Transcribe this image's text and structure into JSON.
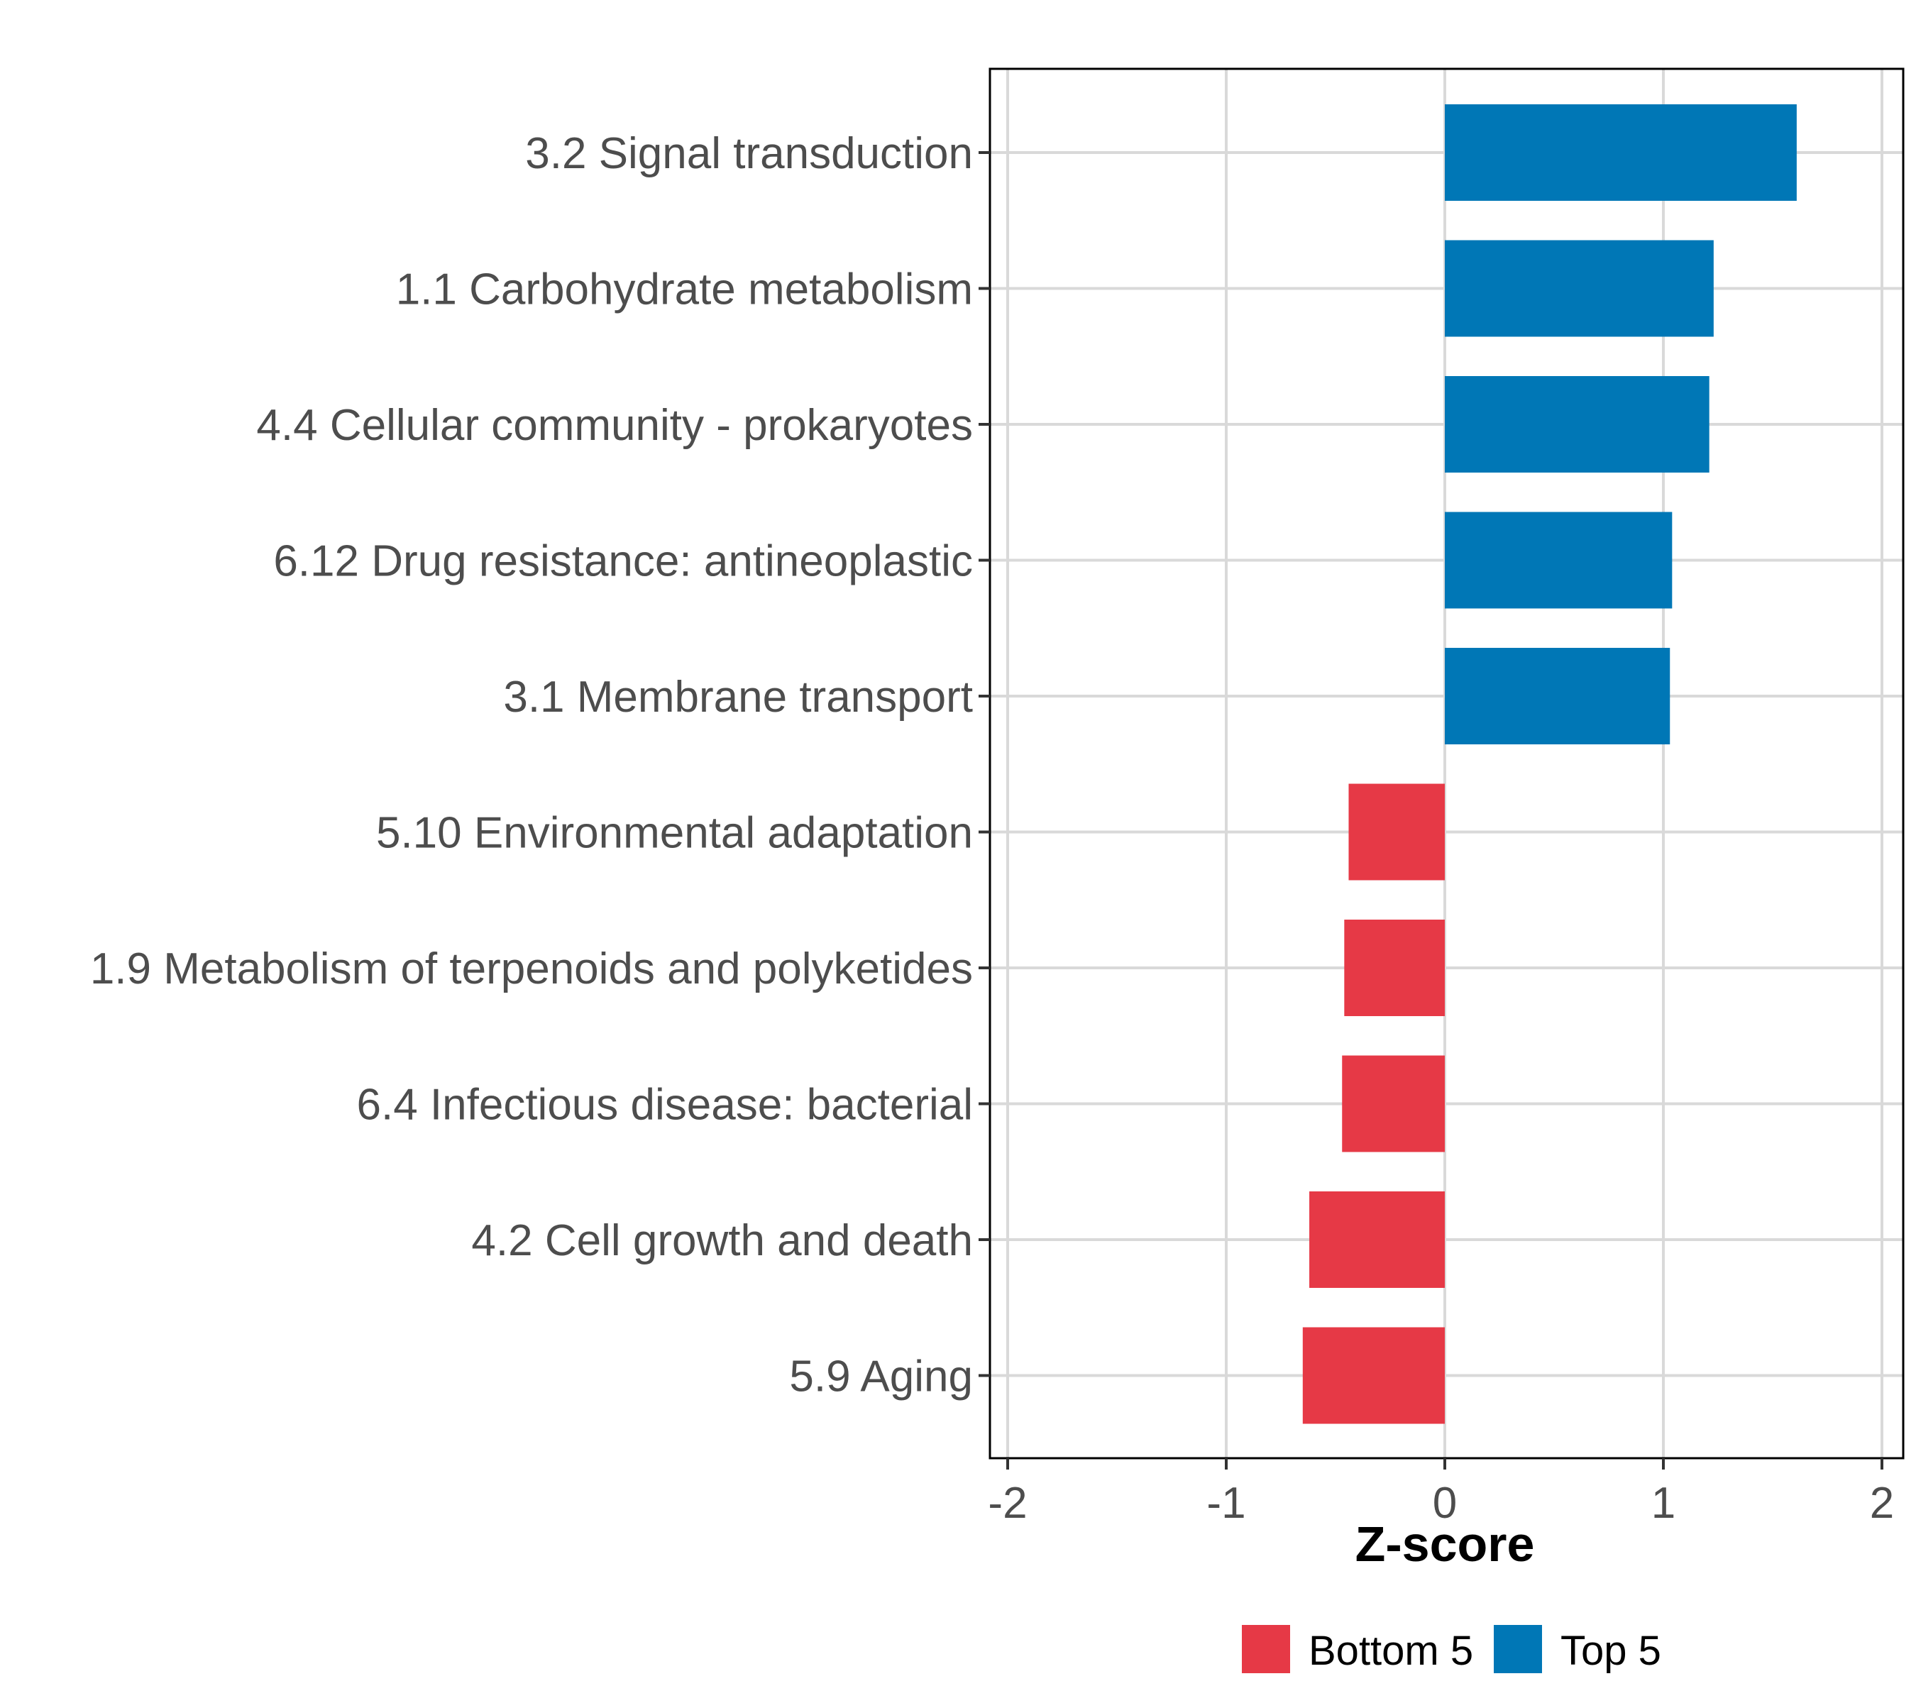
{
  "chart_data": {
    "type": "bar",
    "orientation": "horizontal",
    "categories": [
      "3.2 Signal transduction",
      "1.1 Carbohydrate metabolism",
      "4.4 Cellular community - prokaryotes",
      "6.12 Drug resistance: antineoplastic",
      "3.1 Membrane transport",
      "5.10 Environmental adaptation",
      "1.9 Metabolism of terpenoids and polyketides",
      "6.4 Infectious disease: bacterial",
      "4.2 Cell growth and death",
      "5.9 Aging"
    ],
    "values": [
      1.61,
      1.23,
      1.21,
      1.04,
      1.03,
      -0.44,
      -0.46,
      -0.47,
      -0.62,
      -0.65
    ],
    "groups": [
      "Top 5",
      "Top 5",
      "Top 5",
      "Top 5",
      "Top 5",
      "Bottom 5",
      "Bottom 5",
      "Bottom 5",
      "Bottom 5",
      "Bottom 5"
    ],
    "xlabel": "Z-score",
    "ylabel": "",
    "xlim": [
      -2.1,
      2.1
    ],
    "xticks": [
      -2,
      -1,
      0,
      1,
      2
    ],
    "xtick_labels": [
      "-2",
      "-1",
      "0",
      "1",
      "2"
    ],
    "grid": true,
    "legend": {
      "position": "bottom",
      "entries": [
        {
          "label": "Bottom 5",
          "color": "#E63946"
        },
        {
          "label": "Top 5",
          "color": "#0077B6"
        }
      ]
    }
  }
}
